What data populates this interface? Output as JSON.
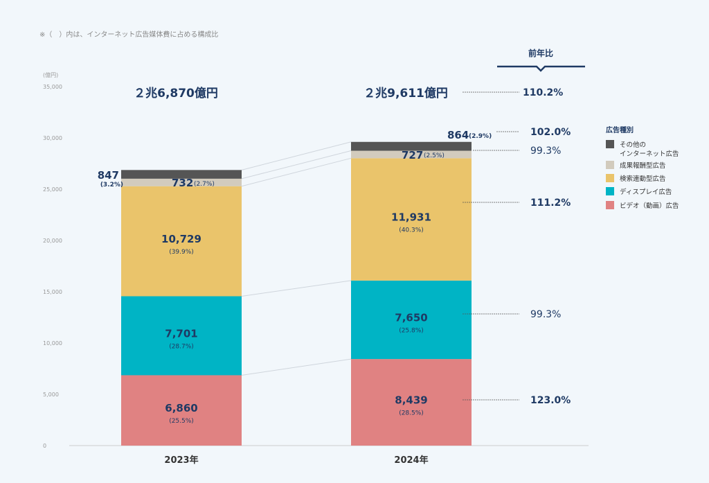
{
  "note": "※（　）内は、インターネット広告媒体費に占める構成比",
  "chart_data": {
    "type": "bar",
    "stacked": true,
    "ylabel": "(億円)",
    "ylim": [
      0,
      35000
    ],
    "yticks": [
      "0",
      "5,000",
      "10,000",
      "15,000",
      "20,000",
      "25,000",
      "30,000",
      "35,000"
    ],
    "categories": [
      "2023年",
      "2024年"
    ],
    "totals": [
      "２兆6,870億円",
      "２兆9,611億円"
    ],
    "legend_title": "広告種別",
    "legend_placement": "right",
    "yoy_header": "前年比",
    "total_yoy": "110.2%",
    "series": [
      {
        "name": "ビデオ（動画）広告",
        "color": "#e08282",
        "values": [
          6860,
          8439
        ],
        "labels": [
          "6,860",
          "8,439"
        ],
        "shares": [
          "(25.5%)",
          "(28.5%)"
        ],
        "yoy": "123.0%",
        "yoy_bold": true
      },
      {
        "name": "ディスプレイ広告",
        "color": "#00b4c5",
        "values": [
          7701,
          7650
        ],
        "labels": [
          "7,701",
          "7,650"
        ],
        "shares": [
          "(28.7%)",
          "(25.8%)"
        ],
        "yoy": "99.3%",
        "yoy_bold": false
      },
      {
        "name": "検索連動型広告",
        "color": "#eac46b",
        "values": [
          10729,
          11931
        ],
        "labels": [
          "10,729",
          "11,931"
        ],
        "shares": [
          "(39.9%)",
          "(40.3%)"
        ],
        "yoy": "111.2%",
        "yoy_bold": true
      },
      {
        "name": "成果報酬型広告",
        "color": "#d2cbbd",
        "values": [
          732,
          727
        ],
        "labels": [
          "732",
          "727"
        ],
        "shares": [
          "(2.7%)",
          "(2.5%)"
        ],
        "yoy": "99.3%",
        "yoy_bold": false
      },
      {
        "name": "その他の\nインターネット広告",
        "color": "#555555",
        "values": [
          847,
          864
        ],
        "labels": [
          "847",
          "864"
        ],
        "shares": [
          "(3.2%)",
          "(2.9%)"
        ],
        "yoy": "102.0%",
        "yoy_bold": true
      }
    ]
  }
}
